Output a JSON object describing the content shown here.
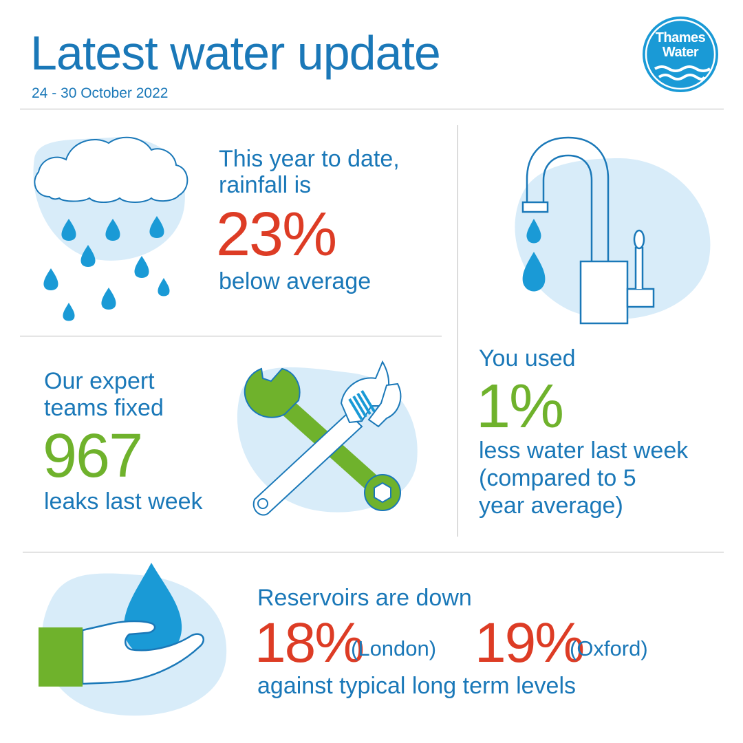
{
  "header": {
    "title": "Latest water update",
    "date_range": "24 - 30 October 2022",
    "logo_line1": "Thames",
    "logo_line2": "Water"
  },
  "rainfall": {
    "line1": "This year to date,",
    "line2": "rainfall is",
    "value": "23%",
    "caption": "below average"
  },
  "usage": {
    "intro": "You used",
    "value": "1%",
    "line1": "less water last week",
    "line2": "(compared to 5",
    "line3": "year average)"
  },
  "leaks": {
    "line1": "Our expert",
    "line2": "teams fixed",
    "value": "967",
    "caption": "leaks last week"
  },
  "reservoirs": {
    "intro": "Reservoirs are down",
    "london_value": "18%",
    "london_label": "(London)",
    "oxford_value": "19%",
    "oxford_label": "(Oxford)",
    "caption": "against typical long term levels"
  },
  "colors": {
    "blue": "#1a78b8",
    "red": "#dd3c25",
    "green": "#6fb22c",
    "light_blue": "#d8ecf9",
    "drop_blue": "#1a9ad6"
  },
  "icons": [
    "rain-cloud-icon",
    "tap-icon",
    "wrench-spanner-icon",
    "hand-water-drop-icon",
    "thames-water-logo"
  ]
}
